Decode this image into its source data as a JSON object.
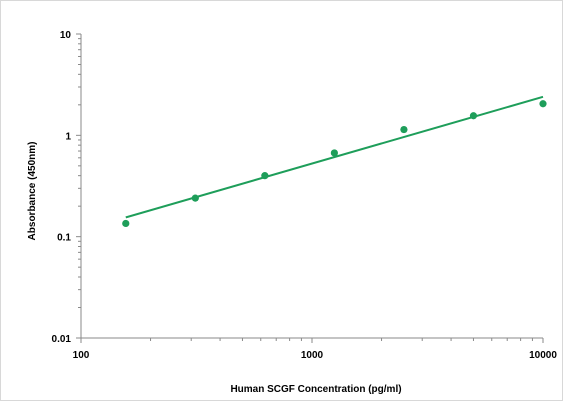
{
  "chart_data": {
    "type": "scatter",
    "title": "",
    "xlabel": "Human SCGF Concentration (pg/ml)",
    "ylabel": "Absorbance (450nm)",
    "x_scale": "log",
    "y_scale": "log",
    "xlim": [
      100,
      10000
    ],
    "ylim": [
      0.01,
      10
    ],
    "x_ticks": [
      "100",
      "1000",
      "10000"
    ],
    "y_ticks": [
      "0.01",
      "0.1",
      "1",
      "10"
    ],
    "grid": false,
    "legend": "none",
    "series": [
      {
        "points": [
          {
            "x": 156.25,
            "y": 0.135
          },
          {
            "x": 312.5,
            "y": 0.24
          },
          {
            "x": 625,
            "y": 0.4
          },
          {
            "x": 1250,
            "y": 0.67
          },
          {
            "x": 2500,
            "y": 1.14
          },
          {
            "x": 5000,
            "y": 1.56
          },
          {
            "x": 10000,
            "y": 2.05
          }
        ],
        "color": "#1e9e5a"
      }
    ],
    "trendline": {
      "x": [
        156.25,
        10000
      ],
      "y": [
        0.155,
        2.4
      ],
      "color": "#1e9e5a"
    }
  }
}
